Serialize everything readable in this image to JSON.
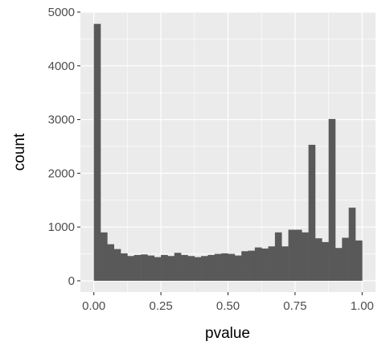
{
  "chart_data": {
    "type": "bar",
    "xlabel": "pvalue",
    "ylabel": "count",
    "xlim": [
      -0.05,
      1.05
    ],
    "ylim": [
      -210,
      5000
    ],
    "x_ticks": [
      0.0,
      0.25,
      0.5,
      0.75,
      1.0
    ],
    "x_tick_labels": [
      "0.00",
      "0.25",
      "0.50",
      "0.75",
      "1.00"
    ],
    "y_ticks": [
      0,
      1000,
      2000,
      3000,
      4000,
      5000
    ],
    "y_tick_labels": [
      "0",
      "1000",
      "2000",
      "3000",
      "4000",
      "5000"
    ],
    "bin_width": 0.025,
    "bins_start": 0.0,
    "values": [
      4780,
      900,
      680,
      590,
      510,
      460,
      480,
      490,
      470,
      440,
      480,
      460,
      520,
      480,
      460,
      440,
      460,
      480,
      500,
      510,
      500,
      470,
      550,
      560,
      620,
      600,
      640,
      900,
      640,
      950,
      950,
      900,
      2530,
      790,
      720,
      3010,
      610,
      800,
      1360,
      750
    ],
    "grid": true,
    "bar_color": "#595959",
    "panel_color": "#ebebeb",
    "grid_color": "#ffffff"
  }
}
